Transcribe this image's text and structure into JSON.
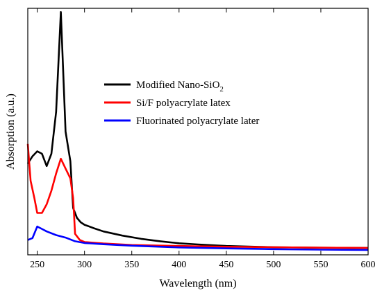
{
  "chart_data": {
    "type": "line",
    "xlabel": "Wavelength (nm)",
    "ylabel": "Absorption (a.u.)",
    "xlim": [
      240,
      600
    ],
    "ylim": [
      0,
      1
    ],
    "x_ticks": [
      250,
      300,
      350,
      400,
      450,
      500,
      550,
      600
    ],
    "y_ticks_shown": false,
    "grid": false,
    "legend_position": "upper-center",
    "series": [
      {
        "name_parts": [
          "Modified Nano-SiO",
          "2"
        ],
        "color": "#000000",
        "points": [
          [
            240,
            0.37
          ],
          [
            245,
            0.4
          ],
          [
            250,
            0.42
          ],
          [
            255,
            0.41
          ],
          [
            260,
            0.36
          ],
          [
            265,
            0.41
          ],
          [
            270,
            0.58
          ],
          [
            275,
            0.985
          ],
          [
            280,
            0.5
          ],
          [
            285,
            0.38
          ],
          [
            288,
            0.19
          ],
          [
            292,
            0.15
          ],
          [
            296,
            0.132
          ],
          [
            300,
            0.122
          ],
          [
            310,
            0.108
          ],
          [
            320,
            0.095
          ],
          [
            340,
            0.078
          ],
          [
            360,
            0.065
          ],
          [
            380,
            0.055
          ],
          [
            400,
            0.047
          ],
          [
            420,
            0.042
          ],
          [
            450,
            0.036
          ],
          [
            480,
            0.033
          ],
          [
            500,
            0.031
          ],
          [
            550,
            0.029
          ],
          [
            600,
            0.028
          ]
        ]
      },
      {
        "name": "Si/F polyacrylate latex",
        "color": "#ff0000",
        "points": [
          [
            240,
            0.45
          ],
          [
            243,
            0.3
          ],
          [
            247,
            0.23
          ],
          [
            250,
            0.17
          ],
          [
            255,
            0.17
          ],
          [
            260,
            0.205
          ],
          [
            265,
            0.26
          ],
          [
            270,
            0.33
          ],
          [
            275,
            0.39
          ],
          [
            280,
            0.35
          ],
          [
            285,
            0.31
          ],
          [
            288,
            0.23
          ],
          [
            290,
            0.085
          ],
          [
            295,
            0.06
          ],
          [
            300,
            0.052
          ],
          [
            320,
            0.046
          ],
          [
            350,
            0.04
          ],
          [
            400,
            0.036
          ],
          [
            450,
            0.033
          ],
          [
            500,
            0.031
          ],
          [
            550,
            0.029
          ],
          [
            600,
            0.028
          ]
        ]
      },
      {
        "name": "Fluorinated polyacrylate later",
        "color": "#0000ff",
        "points": [
          [
            240,
            0.06
          ],
          [
            245,
            0.068
          ],
          [
            250,
            0.115
          ],
          [
            255,
            0.105
          ],
          [
            260,
            0.095
          ],
          [
            270,
            0.08
          ],
          [
            280,
            0.07
          ],
          [
            290,
            0.055
          ],
          [
            300,
            0.048
          ],
          [
            320,
            0.043
          ],
          [
            350,
            0.037
          ],
          [
            400,
            0.03
          ],
          [
            450,
            0.026
          ],
          [
            500,
            0.023
          ],
          [
            550,
            0.021
          ],
          [
            600,
            0.02
          ]
        ]
      }
    ]
  }
}
